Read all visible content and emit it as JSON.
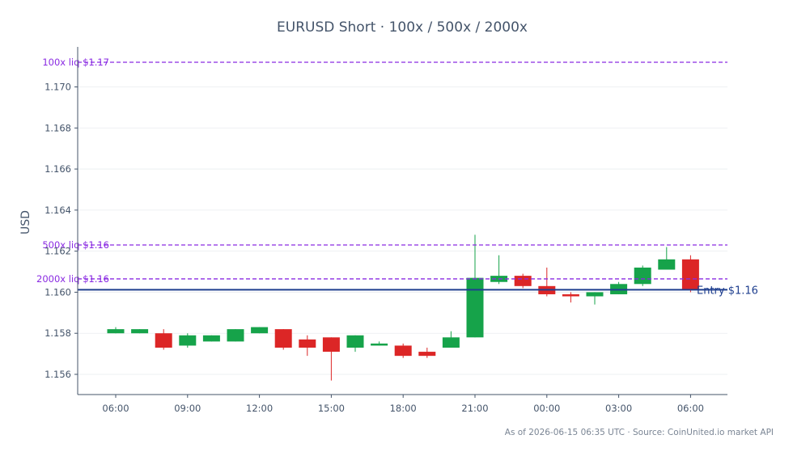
{
  "chart_data": {
    "type": "candlestick",
    "title": "EURUSD Short · 100x / 500x / 2000x",
    "ylabel": "USD",
    "ylim": [
      1.155,
      1.1715
    ],
    "yticks": [
      "1.156",
      "1.158",
      "1.160",
      "1.162",
      "1.164",
      "1.166",
      "1.168",
      "1.170"
    ],
    "xticks": [
      {
        "label": "06:00",
        "index": 0
      },
      {
        "label": "09:00",
        "index": 3
      },
      {
        "label": "12:00",
        "index": 6
      },
      {
        "label": "15:00",
        "index": 9
      },
      {
        "label": "18:00",
        "index": 12
      },
      {
        "label": "21:00",
        "index": 15
      },
      {
        "label": "00:00",
        "index": 18
      },
      {
        "label": "03:00",
        "index": 21
      },
      {
        "label": "06:00",
        "index": 24
      }
    ],
    "candles": [
      {
        "o": 1.158,
        "h": 1.1583,
        "l": 1.158,
        "c": 1.1582
      },
      {
        "o": 1.158,
        "h": 1.1582,
        "l": 1.158,
        "c": 1.1582
      },
      {
        "o": 1.158,
        "h": 1.1582,
        "l": 1.1572,
        "c": 1.1573
      },
      {
        "o": 1.1574,
        "h": 1.158,
        "l": 1.1573,
        "c": 1.1579
      },
      {
        "o": 1.1576,
        "h": 1.1579,
        "l": 1.1576,
        "c": 1.1579
      },
      {
        "o": 1.1576,
        "h": 1.1582,
        "l": 1.1576,
        "c": 1.1582
      },
      {
        "o": 1.158,
        "h": 1.1583,
        "l": 1.158,
        "c": 1.1583
      },
      {
        "o": 1.1582,
        "h": 1.1582,
        "l": 1.1572,
        "c": 1.1573
      },
      {
        "o": 1.1577,
        "h": 1.1579,
        "l": 1.1569,
        "c": 1.1573
      },
      {
        "o": 1.1578,
        "h": 1.1578,
        "l": 1.1557,
        "c": 1.1571
      },
      {
        "o": 1.1573,
        "h": 1.1579,
        "l": 1.1571,
        "c": 1.1579
      },
      {
        "o": 1.1574,
        "h": 1.1576,
        "l": 1.1574,
        "c": 1.1575
      },
      {
        "o": 1.1574,
        "h": 1.1575,
        "l": 1.1568,
        "c": 1.1569
      },
      {
        "o": 1.1571,
        "h": 1.1573,
        "l": 1.1568,
        "c": 1.1569
      },
      {
        "o": 1.1573,
        "h": 1.1581,
        "l": 1.1573,
        "c": 1.1578
      },
      {
        "o": 1.1578,
        "h": 1.1628,
        "l": 1.1578,
        "c": 1.1607
      },
      {
        "o": 1.1605,
        "h": 1.1618,
        "l": 1.1604,
        "c": 1.1608
      },
      {
        "o": 1.1608,
        "h": 1.1609,
        "l": 1.1602,
        "c": 1.1603
      },
      {
        "o": 1.1603,
        "h": 1.1612,
        "l": 1.1598,
        "c": 1.1599
      },
      {
        "o": 1.1599,
        "h": 1.16,
        "l": 1.1595,
        "c": 1.1598
      },
      {
        "o": 1.1598,
        "h": 1.16,
        "l": 1.1594,
        "c": 1.16
      },
      {
        "o": 1.1599,
        "h": 1.1605,
        "l": 1.1599,
        "c": 1.1604
      },
      {
        "o": 1.1604,
        "h": 1.1613,
        "l": 1.1603,
        "c": 1.1612
      },
      {
        "o": 1.1611,
        "h": 1.1622,
        "l": 1.1611,
        "c": 1.1616
      },
      {
        "o": 1.1616,
        "h": 1.1618,
        "l": 1.16,
        "c": 1.1601
      }
    ],
    "hlines": [
      {
        "label": "100x liq $1.17",
        "value": 1.1712,
        "color": "#8a2be2",
        "style": "dashed"
      },
      {
        "label": "500x liq $1.16",
        "value": 1.1623,
        "color": "#8a2be2",
        "style": "dashed"
      },
      {
        "label": "2000x liq $1.16",
        "value": 1.16065,
        "color": "#8a2be2",
        "style": "dashed"
      },
      {
        "label": "Entry $1.16",
        "value": 1.16012,
        "color": "#1f3f8f",
        "style": "solid"
      }
    ],
    "colors": {
      "up": "#16a34a",
      "down": "#dc2626",
      "text": "#44546a"
    },
    "grid": true
  },
  "footer": "As of 2026-06-15 06:35 UTC · Source: CoinUnited.io market API"
}
